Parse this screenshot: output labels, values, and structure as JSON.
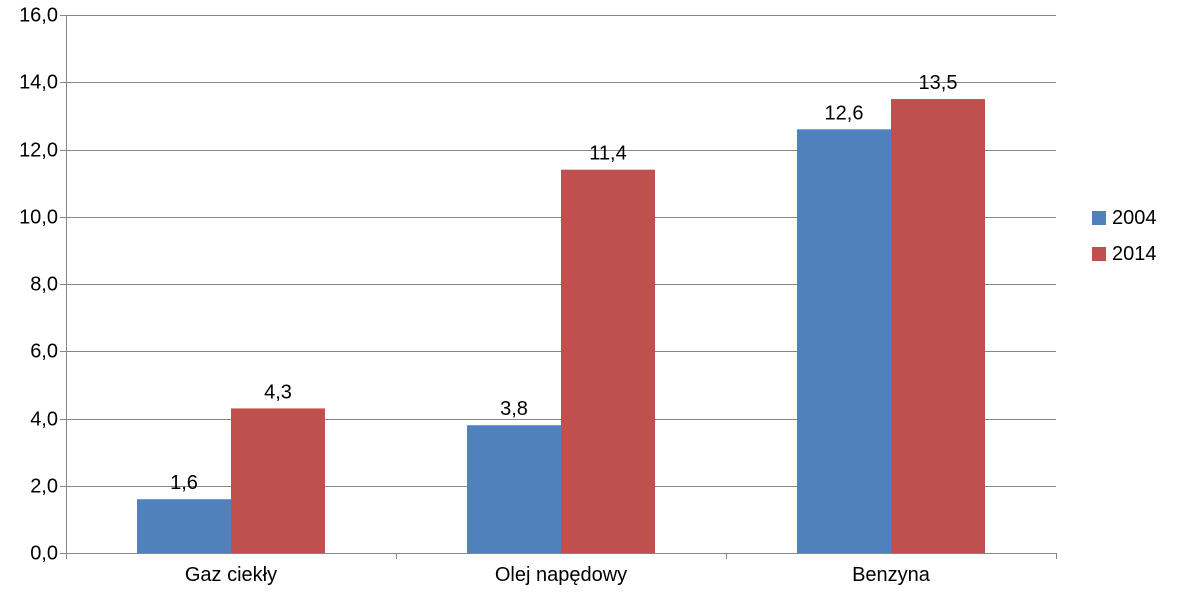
{
  "chart_data": {
    "type": "bar",
    "title": "",
    "xlabel": "",
    "ylabel": "",
    "categories": [
      "Gaz ciekły",
      "Olej napędowy",
      "Benzyna"
    ],
    "series": [
      {
        "name": "2004",
        "values": [
          1.6,
          3.8,
          12.6
        ],
        "labels": [
          "1,6",
          "3,8",
          "12,6"
        ],
        "color": "#4f81bd"
      },
      {
        "name": "2014",
        "values": [
          4.3,
          11.4,
          13.5
        ],
        "labels": [
          "4,3",
          "11,4",
          "13,5"
        ],
        "color": "#c0504d"
      }
    ],
    "ylim": [
      0,
      16
    ],
    "yticks": [
      0,
      2,
      4,
      6,
      8,
      10,
      12,
      14,
      16
    ],
    "ytick_labels": [
      "0,0",
      "2,0",
      "4,0",
      "6,0",
      "8,0",
      "10,0",
      "12,0",
      "14,0",
      "16,0"
    ],
    "grid": true,
    "legend_position": "right",
    "gridline_color": "#868686"
  }
}
